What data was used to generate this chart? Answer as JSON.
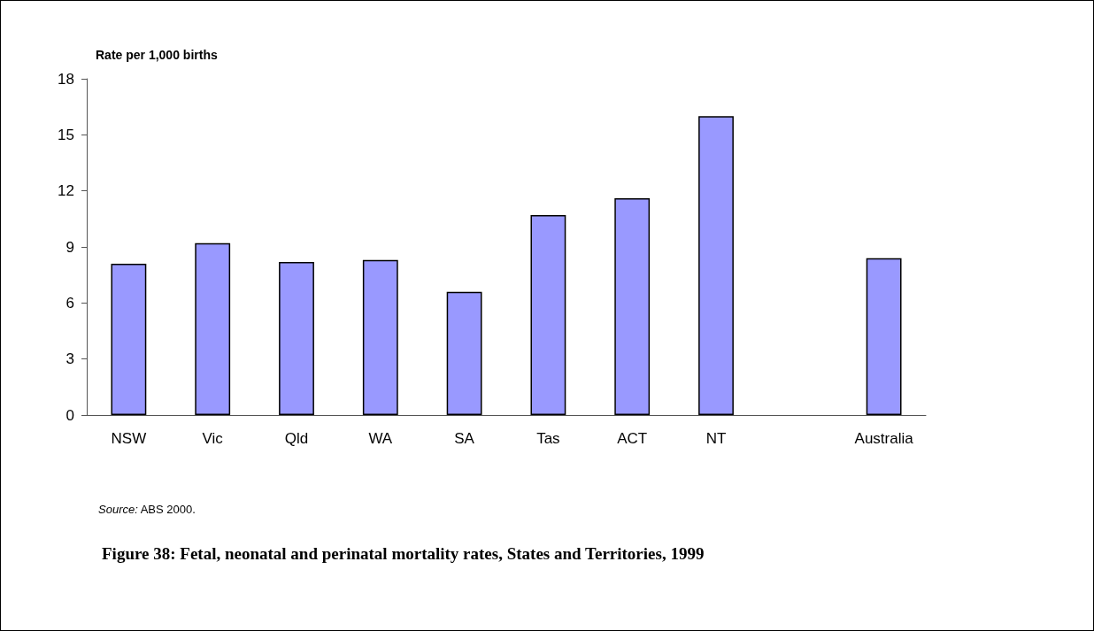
{
  "chart_data": {
    "type": "bar",
    "title": "Figure 38: Fetal, neonatal and perinatal mortality rates, States and Territories, 1999",
    "ylabel": "Rate per 1,000 births",
    "categories": [
      "NSW",
      "Vic",
      "Qld",
      "WA",
      "SA",
      "Tas",
      "ACT",
      "NT",
      null,
      "Australia"
    ],
    "values": [
      8.1,
      9.2,
      8.2,
      8.3,
      6.6,
      10.7,
      11.6,
      16.0,
      null,
      8.4
    ],
    "color": "#9999ff",
    "ylim": [
      0,
      18
    ],
    "yticks": [
      0,
      3,
      6,
      9,
      12,
      15,
      18
    ],
    "annotations": [
      "Source: ABS 2000."
    ],
    "grid": false
  }
}
